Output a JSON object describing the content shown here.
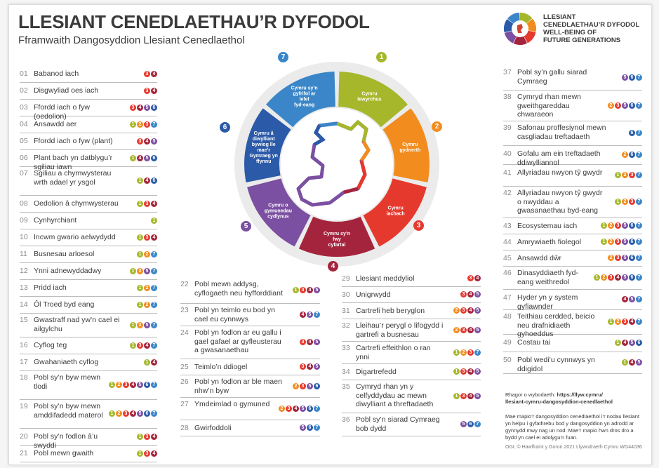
{
  "title": "LLESIANT CENEDLAETHAU’R DYFODOL",
  "subtitle": "Fframwaith Dangosyddion Llesiant Cenedlaethol",
  "logo": {
    "line1": "LLESIANT",
    "line2": "CENEDLAETHAU’R DYFODOL",
    "line3": "WELL-BEING OF",
    "line4": "FUTURE GENERATIONS"
  },
  "colors": {
    "1": "#a6b72c",
    "2": "#f28c1e",
    "3": "#e6392e",
    "4": "#a5243d",
    "5": "#7b4fa1",
    "6": "#2b5aa8",
    "7": "#3a86c8"
  },
  "goals": [
    {
      "n": "1",
      "label": "Cymru lewyrchus"
    },
    {
      "n": "2",
      "label": "Cymru gydnerth"
    },
    {
      "n": "3",
      "label": "Cymru iachach"
    },
    {
      "n": "4",
      "label": "Cymru sy’n fwy cyfartal"
    },
    {
      "n": "5",
      "label": "Cymru o gymunedau cydlynus"
    },
    {
      "n": "6",
      "label": "Cymru â diwylliant bywiog lle mae’r Gymraeg yn ffynnu"
    },
    {
      "n": "7",
      "label": "Cymru sy’n gyfrifol ar lefel fyd-eang"
    }
  ],
  "indicators": [
    {
      "n": "01",
      "t": "Babanod iach",
      "g": [
        "3",
        "4"
      ]
    },
    {
      "n": "02",
      "t": "Disgwyliad oes iach",
      "g": [
        "3",
        "4"
      ]
    },
    {
      "n": "03",
      "t": "Ffordd iach o fyw (oedolion)",
      "g": [
        "3",
        "4",
        "5",
        "6"
      ]
    },
    {
      "n": "04",
      "t": "Ansawdd aer",
      "g": [
        "1",
        "2",
        "3",
        "7"
      ]
    },
    {
      "n": "05",
      "t": "Ffordd iach o fyw (plant)",
      "g": [
        "3",
        "4",
        "5"
      ]
    },
    {
      "n": "06",
      "t": "Plant bach yn datblygu’r sgiliau iawn",
      "g": [
        "1",
        "4",
        "5",
        "6"
      ]
    },
    {
      "n": "07",
      "t": "Sgiliau a chymwysterau wrth adael yr ysgol",
      "g": [
        "1",
        "4",
        "6"
      ]
    },
    {
      "n": "08",
      "t": "Oedolion â chymwysterau",
      "g": [
        "1",
        "3",
        "4"
      ]
    },
    {
      "n": "09",
      "t": "Cynhyrchiant",
      "g": [
        "1"
      ]
    },
    {
      "n": "10",
      "t": "Incwm gwario aelwydydd",
      "g": [
        "1",
        "3",
        "4"
      ]
    },
    {
      "n": "11",
      "t": "Busnesau arloesol",
      "g": [
        "1",
        "2",
        "7"
      ]
    },
    {
      "n": "12",
      "t": "Ynni adnewyddadwy",
      "g": [
        "1",
        "2",
        "5",
        "7"
      ]
    },
    {
      "n": "13",
      "t": "Pridd iach",
      "g": [
        "1",
        "2",
        "7"
      ]
    },
    {
      "n": "14",
      "t": "Ôl Troed byd eang",
      "g": [
        "1",
        "2",
        "7"
      ]
    },
    {
      "n": "15",
      "t": "Gwastraff nad yw’n cael ei ailgylchu",
      "g": [
        "1",
        "2",
        "5",
        "7"
      ]
    },
    {
      "n": "16",
      "t": "Cyflog teg",
      "g": [
        "1",
        "3",
        "4",
        "7"
      ]
    },
    {
      "n": "17",
      "t": "Gwahaniaeth cyflog",
      "g": [
        "1",
        "4"
      ]
    },
    {
      "n": "18",
      "t": "Pobl sy’n byw mewn tlodi",
      "g": [
        "1",
        "2",
        "3",
        "4",
        "5",
        "6",
        "7"
      ]
    },
    {
      "n": "19",
      "t": "Pobl sy’n byw mewn amddifadedd materol",
      "g": [
        "1",
        "2",
        "3",
        "4",
        "5",
        "6",
        "7"
      ]
    },
    {
      "n": "20",
      "t": "Pobl sy’n fodlon â’u swyddi",
      "g": [
        "1",
        "3",
        "4"
      ]
    },
    {
      "n": "21",
      "t": "Pobl mewn gwaith",
      "g": [
        "1",
        "3",
        "4"
      ]
    },
    {
      "n": "22",
      "t": "Pobl mewn addysg, cyflogaeth neu hyfforddiant",
      "g": [
        "1",
        "3",
        "4",
        "5"
      ]
    },
    {
      "n": "23",
      "t": "Pobl yn teimlo eu bod yn cael eu cynnwys",
      "g": [
        "4",
        "5",
        "7"
      ]
    },
    {
      "n": "24",
      "t": "Pobl yn fodlon ar eu gallu i gael gafael ar gyfleusterau a gwasanaethau",
      "g": [
        "3",
        "4",
        "5"
      ]
    },
    {
      "n": "25",
      "t": "Teimlo’n ddiogel",
      "g": [
        "3",
        "4",
        "5"
      ]
    },
    {
      "n": "26",
      "t": "Pobl yn fodlon ar ble maen nhw’n byw",
      "g": [
        "2",
        "3",
        "5",
        "6"
      ]
    },
    {
      "n": "27",
      "t": "Ymdeimlad o gymuned",
      "g": [
        "2",
        "3",
        "4",
        "5",
        "6",
        "7"
      ]
    },
    {
      "n": "28",
      "t": "Gwirfoddoli",
      "g": [
        "5",
        "6",
        "7"
      ]
    },
    {
      "n": "29",
      "t": "Llesiant meddyliol",
      "g": [
        "3",
        "4"
      ]
    },
    {
      "n": "30",
      "t": "Unigrwydd",
      "g": [
        "3",
        "4",
        "5"
      ]
    },
    {
      "n": "31",
      "t": "Cartrefi heb beryglon",
      "g": [
        "2",
        "3",
        "4",
        "5"
      ]
    },
    {
      "n": "32",
      "t": "Lleihau’r perygl o lifogydd i gartrefi a busnesau",
      "g": [
        "2",
        "3",
        "4",
        "5"
      ]
    },
    {
      "n": "33",
      "t": "Cartrefi effeithlon o ran ynni",
      "g": [
        "1",
        "2",
        "3",
        "7"
      ]
    },
    {
      "n": "34",
      "t": "Digartrefedd",
      "g": [
        "1",
        "3",
        "4",
        "5"
      ]
    },
    {
      "n": "35",
      "t": "Cymryd rhan yn y celfyddydau ac mewn diwylliant a threftadaeth",
      "g": [
        "1",
        "3",
        "4",
        "5"
      ]
    },
    {
      "n": "36",
      "t": "Pobl sy’n siarad Cymraeg bob dydd",
      "g": [
        "5",
        "6",
        "7"
      ]
    },
    {
      "n": "37",
      "t": "Pobl sy’n gallu siarad Cymraeg",
      "g": [
        "5",
        "6",
        "7"
      ]
    },
    {
      "n": "38",
      "t": "Cymryd rhan mewn gweithgareddau chwaraeon",
      "g": [
        "2",
        "3",
        "5",
        "6",
        "7"
      ]
    },
    {
      "n": "39",
      "t": "Safonau proffesiynol mewn casgliadau treftadaeth",
      "g": [
        "6",
        "7"
      ]
    },
    {
      "n": "40",
      "t": "Gofalu am ein treftadaeth ddiwylliannol",
      "g": [
        "2",
        "6",
        "7"
      ]
    },
    {
      "n": "41",
      "t": "Allyriadau nwyon tŷ gwydr",
      "g": [
        "1",
        "2",
        "3",
        "7"
      ]
    },
    {
      "n": "42",
      "t": "Allyriadau nwyon tŷ gwydr o nwyddau a gwasanaethau byd-eang",
      "g": [
        "1",
        "2",
        "3",
        "7"
      ]
    },
    {
      "n": "43",
      "t": "Ecosystemau iach",
      "g": [
        "1",
        "2",
        "3",
        "5",
        "6",
        "7"
      ]
    },
    {
      "n": "44",
      "t": "Amrywiaeth fiolegol",
      "g": [
        "1",
        "2",
        "3",
        "5",
        "6",
        "7"
      ]
    },
    {
      "n": "45",
      "t": "Ansawdd dŵr",
      "g": [
        "2",
        "3",
        "5",
        "6",
        "7"
      ]
    },
    {
      "n": "46",
      "t": "Dinasyddiaeth fyd-eang weithredol",
      "g": [
        "1",
        "2",
        "3",
        "4",
        "5",
        "6",
        "7"
      ]
    },
    {
      "n": "47",
      "t": "Hyder yn y system gyfiawnder",
      "g": [
        "4",
        "5",
        "7"
      ]
    },
    {
      "n": "48",
      "t": "Teithiau cerdded, beicio neu drafnidiaeth gyhoeddus",
      "g": [
        "1",
        "2",
        "3",
        "4",
        "7"
      ]
    },
    {
      "n": "49",
      "t": "Costau tai",
      "g": [
        "1",
        "4",
        "5",
        "6"
      ]
    },
    {
      "n": "50",
      "t": "Pobl wedi’u cynnwys yn ddigidol",
      "g": [
        "1",
        "4",
        "5"
      ]
    }
  ],
  "info": {
    "more": "Rhagor o wybodaeth:",
    "url1": "https://llyw.cymru/",
    "url2": "llesiant-cymru-dangosyddion-cenedlaethol",
    "para": "Mae mapio’r dangosyddion cenedlaethol i’r nodau llesiant yn helpu i gyfathrebu bod y dangosyddion yn adrodd ar gynnydd mwy nag un nod. Mae’r mapio hwn dros dro a bydd yn cael ei adolygu’n fuan.",
    "footer": "OGL © Hawlfraint y Goron 2021  Llywodraeth Cymru  WG44036"
  }
}
